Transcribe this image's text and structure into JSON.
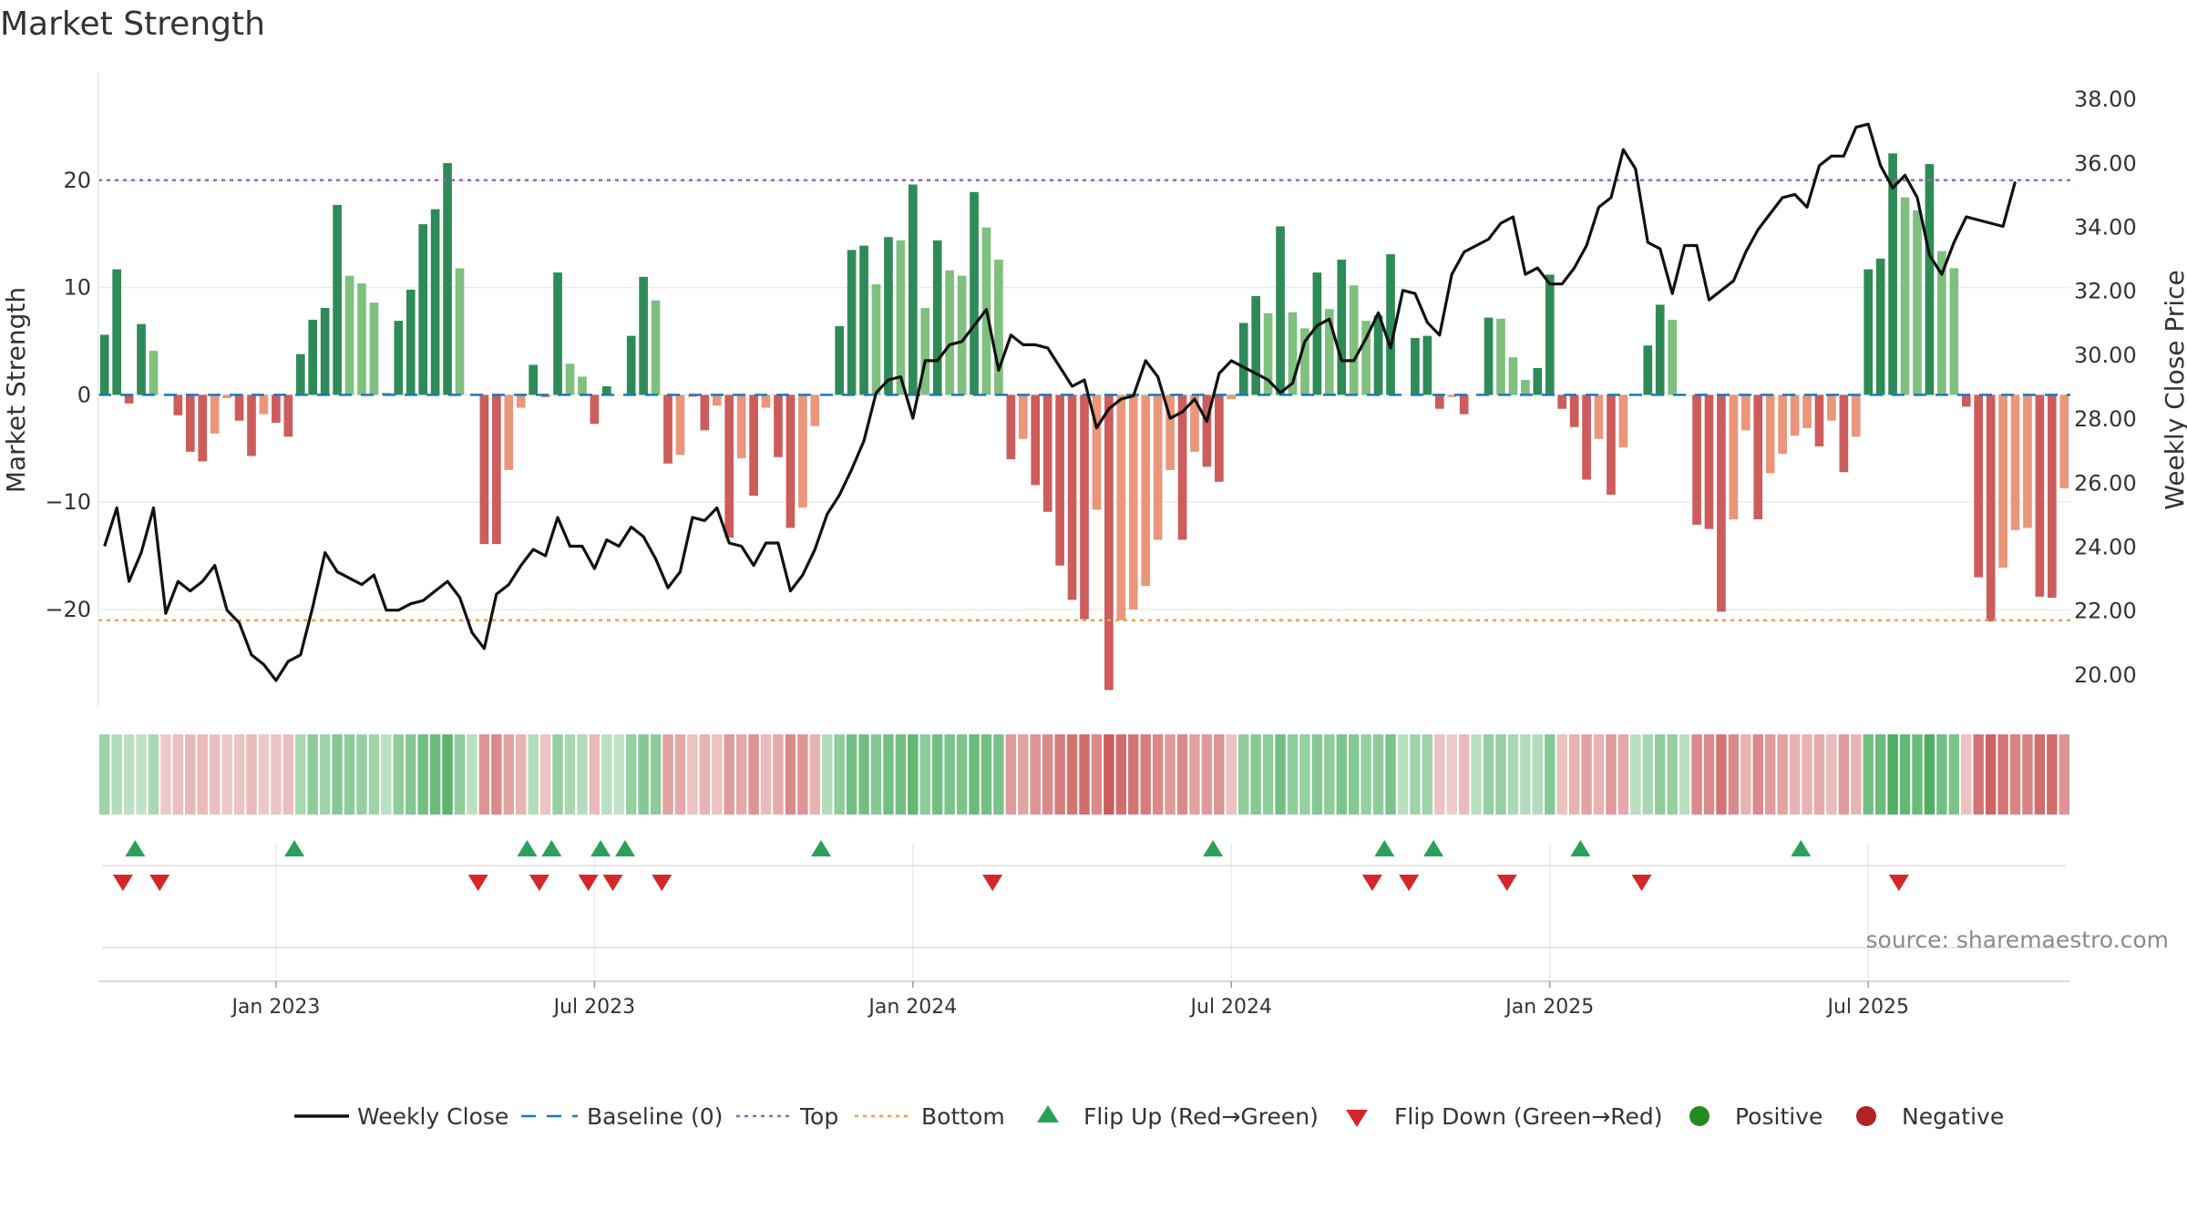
{
  "chart_data": {
    "type": "bar",
    "title": "Market Strength",
    "ylabel_left": "Market Strength",
    "ylabel_right": "Weekly Close Price",
    "ylim_left": [
      -29,
      30
    ],
    "ylim_right": [
      19.0,
      38.8
    ],
    "yticks_left": [
      20,
      10,
      0,
      -10,
      -20
    ],
    "ytick_labels_left": [
      "20",
      "10",
      "0",
      "−10",
      "−20"
    ],
    "yticks_right": [
      38,
      36,
      34,
      32,
      30,
      28,
      26,
      24,
      22,
      20
    ],
    "ytick_labels_right": [
      "38.00",
      "36.00",
      "34.00",
      "32.00",
      "30.00",
      "28.00",
      "26.00",
      "24.00",
      "22.00",
      "20.00"
    ],
    "x_ticks": [
      {
        "label": "Jan 2023",
        "week": 14.5
      },
      {
        "label": "Jul 2023",
        "week": 40.5
      },
      {
        "label": "Jan 2024",
        "week": 66.5
      },
      {
        "label": "Jul 2024",
        "week": 92.5
      },
      {
        "label": "Jan 2025",
        "week": 118.5
      },
      {
        "label": "Jul 2025",
        "week": 144.5
      }
    ],
    "top_level": 20,
    "bottom_level": -21,
    "strength": [
      5.6,
      11.7,
      -0.8,
      6.6,
      4.1,
      0,
      -1.9,
      -5.3,
      -6.2,
      -3.6,
      -0.3,
      -2.4,
      -5.7,
      -1.8,
      -2.6,
      -3.9,
      3.8,
      7.0,
      8.1,
      17.7,
      11.1,
      10.4,
      8.6,
      0.2,
      6.9,
      9.8,
      15.9,
      17.3,
      21.6,
      11.8,
      0,
      -13.9,
      -13.9,
      -7.0,
      -1.2,
      2.8,
      -0.2,
      11.4,
      2.9,
      1.7,
      -2.7,
      0.8,
      0,
      5.5,
      11.0,
      8.8,
      -6.4,
      -5.6,
      -0.2,
      -3.3,
      -1.0,
      -13.3,
      -5.9,
      -9.4,
      -1.2,
      -5.8,
      -12.4,
      -10.5,
      -2.9,
      0,
      6.4,
      13.5,
      13.9,
      10.3,
      14.7,
      14.4,
      19.6,
      8.1,
      14.4,
      11.6,
      11.1,
      18.9,
      15.6,
      12.6,
      -6.0,
      -4.1,
      -8.4,
      -10.9,
      -15.9,
      -19.1,
      -20.9,
      -10.7,
      -27.5,
      -21.0,
      -20.0,
      -17.8,
      -13.5,
      -7.0,
      -13.5,
      -5.3,
      -6.7,
      -8.1,
      -0.4,
      6.7,
      9.2,
      7.6,
      15.7,
      7.7,
      6.2,
      11.4,
      8.0,
      12.6,
      10.2,
      6.9,
      7.4,
      13.1,
      0,
      5.3,
      5.5,
      -1.3,
      -0.2,
      -1.8,
      0,
      7.2,
      7.1,
      3.5,
      1.4,
      2.5,
      11.2,
      -1.3,
      -3.0,
      -7.9,
      -4.1,
      -9.3,
      -4.9,
      0,
      4.6,
      8.4,
      7.0,
      0,
      -12.1,
      -12.5,
      -20.2,
      -11.6,
      -3.3,
      -11.6,
      -7.3,
      -5.5,
      -3.8,
      -3.1,
      -4.8,
      -2.4,
      -7.2,
      -3.9,
      11.7,
      12.7,
      22.5,
      18.4,
      17.2,
      21.5,
      13.4,
      11.8,
      -1.1,
      -17.0,
      -21.1,
      -16.1,
      -12.6,
      -12.4,
      -18.8,
      -18.9,
      -8.7
    ],
    "weekly_close": [
      24.0,
      25.2,
      22.9,
      23.8,
      25.2,
      21.9,
      22.9,
      22.6,
      22.9,
      23.4,
      22.0,
      21.6,
      20.6,
      20.3,
      19.8,
      20.4,
      20.6,
      22.1,
      23.8,
      23.2,
      23.0,
      22.8,
      23.1,
      22.0,
      22.0,
      22.2,
      22.3,
      22.6,
      22.9,
      22.4,
      21.3,
      20.8,
      22.5,
      22.8,
      23.4,
      23.9,
      23.7,
      24.9,
      24.0,
      24.0,
      23.3,
      24.2,
      24.0,
      24.6,
      24.3,
      23.6,
      22.7,
      23.2,
      24.9,
      24.8,
      25.2,
      24.1,
      24.0,
      23.4,
      24.1,
      24.1,
      22.6,
      23.1,
      23.9,
      25.0,
      25.6,
      26.4,
      27.3,
      28.8,
      29.2,
      29.3,
      28.0,
      29.8,
      29.8,
      30.3,
      30.4,
      30.9,
      31.4,
      29.5,
      30.6,
      30.3,
      30.3,
      30.2,
      29.6,
      29.0,
      29.2,
      27.7,
      28.3,
      28.6,
      28.7,
      29.8,
      29.3,
      28.0,
      28.2,
      28.6,
      27.9,
      29.4,
      29.8,
      29.6,
      29.4,
      29.2,
      28.8,
      29.1,
      30.4,
      30.9,
      31.1,
      29.8,
      29.8,
      30.5,
      31.3,
      30.2,
      32.0,
      31.9,
      31.0,
      30.6,
      32.5,
      33.2,
      33.4,
      33.6,
      34.1,
      34.3,
      32.5,
      32.7,
      32.2,
      32.2,
      32.7,
      33.4,
      34.6,
      34.9,
      36.4,
      35.8,
      33.5,
      33.3,
      31.9,
      33.4,
      33.4,
      31.7,
      32.0,
      32.3,
      33.2,
      33.9,
      34.4,
      34.9,
      35.0,
      34.6,
      35.9,
      36.2,
      36.2,
      37.1,
      37.2,
      35.9,
      35.2,
      35.6,
      34.9,
      33.1,
      32.5,
      33.5,
      34.3,
      34.2,
      34.1,
      34.0,
      35.4
    ],
    "heat_cells": [
      0.3,
      0.2,
      0.15,
      0.12,
      0.25,
      -0.1,
      -0.18,
      -0.22,
      -0.2,
      -0.18,
      -0.12,
      -0.15,
      -0.2,
      -0.12,
      -0.15,
      -0.18,
      0.25,
      0.4,
      0.3,
      0.45,
      0.4,
      0.35,
      0.3,
      0.15,
      0.4,
      0.45,
      0.55,
      0.6,
      0.7,
      0.4,
      0.15,
      -0.45,
      -0.5,
      -0.35,
      -0.25,
      0.2,
      -0.15,
      0.35,
      0.25,
      0.2,
      -0.2,
      0.15,
      0.1,
      0.35,
      0.45,
      0.4,
      -0.35,
      -0.3,
      -0.15,
      -0.25,
      -0.15,
      -0.4,
      -0.3,
      -0.45,
      -0.2,
      -0.3,
      -0.5,
      -0.45,
      -0.25,
      0.2,
      0.4,
      0.55,
      0.55,
      0.45,
      0.55,
      0.55,
      0.65,
      0.4,
      0.55,
      0.5,
      0.5,
      0.6,
      0.55,
      0.5,
      -0.4,
      -0.35,
      -0.45,
      -0.5,
      -0.6,
      -0.65,
      -0.7,
      -0.5,
      -0.8,
      -0.7,
      -0.65,
      -0.6,
      -0.5,
      -0.4,
      -0.5,
      -0.35,
      -0.4,
      -0.45,
      -0.15,
      0.4,
      0.45,
      0.4,
      0.55,
      0.4,
      0.35,
      0.45,
      0.4,
      0.5,
      0.45,
      0.35,
      0.4,
      0.5,
      0.15,
      0.3,
      0.3,
      -0.15,
      -0.1,
      -0.2,
      0.15,
      0.35,
      0.35,
      0.25,
      0.2,
      0.2,
      0.45,
      -0.15,
      -0.25,
      -0.35,
      -0.25,
      -0.4,
      -0.3,
      0.15,
      0.25,
      0.4,
      0.35,
      0.15,
      -0.5,
      -0.5,
      -0.65,
      -0.5,
      -0.25,
      -0.5,
      -0.4,
      -0.35,
      -0.25,
      -0.25,
      -0.3,
      -0.2,
      -0.4,
      -0.25,
      0.55,
      0.6,
      0.75,
      0.65,
      0.6,
      0.75,
      0.55,
      0.5,
      -0.15,
      -0.65,
      -0.75,
      -0.65,
      -0.55,
      -0.55,
      -0.7,
      -0.7,
      -0.45
    ],
    "flip_up_weeks": [
      3,
      16,
      35,
      37,
      41,
      43,
      59,
      91,
      105,
      109,
      121,
      139
    ],
    "flip_down_weeks": [
      2,
      5,
      31,
      36,
      40,
      42,
      46,
      73,
      104,
      107,
      115,
      126,
      147
    ],
    "legend": [
      {
        "label": "Weekly Close",
        "type": "line",
        "color": "#111111"
      },
      {
        "label": "Baseline (0)",
        "type": "dashed",
        "color": "#1f77b4"
      },
      {
        "label": "Top",
        "type": "dotted",
        "color": "#9467bd"
      },
      {
        "label": "Bottom",
        "type": "dotted",
        "color": "#f0a050"
      },
      {
        "label": "Flip Up (Red→Green)",
        "type": "triangle-up",
        "color": "#2ca05a"
      },
      {
        "label": "Flip Down (Green→Red)",
        "type": "triangle-down",
        "color": "#d62728"
      },
      {
        "label": "Positive",
        "type": "circle",
        "color": "#228b22"
      },
      {
        "label": "Negative",
        "type": "circle",
        "color": "#b22222"
      }
    ],
    "source": "source: sharemaestro.com"
  },
  "colors": {
    "pos_strong": "#2e8b57",
    "pos_weak": "#7fc07f",
    "neg_strong": "#cd5c5c",
    "neg_weak": "#e9967a",
    "price_line": "#111111",
    "baseline": "#1f77b4",
    "top": "#9467bd",
    "bottom": "#f0a050",
    "flip_up": "#2ca05a",
    "flip_down": "#d62728"
  }
}
